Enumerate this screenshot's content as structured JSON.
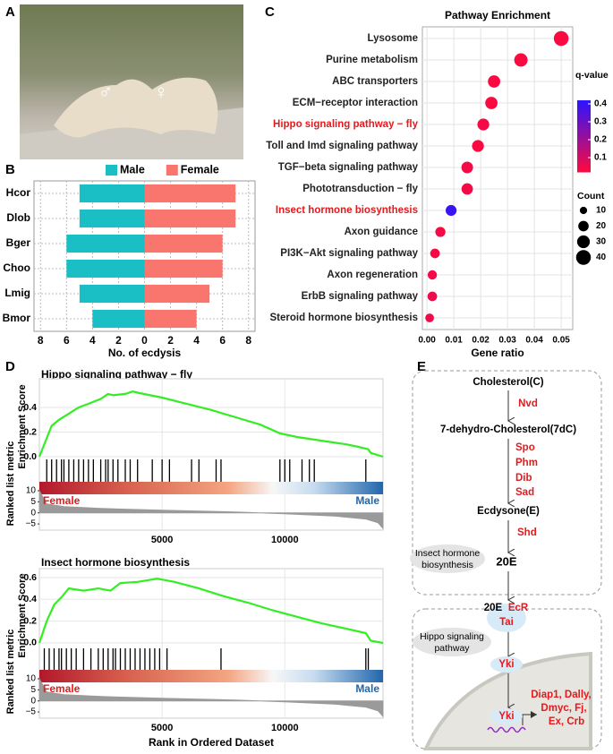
{
  "panel_labels": [
    "A",
    "B",
    "C",
    "D",
    "E"
  ],
  "photo": {
    "symbols": [
      "♂",
      "♀"
    ]
  },
  "chart_data": [
    {
      "type": "butterfly",
      "categories": [
        "Hcor",
        "Dlob",
        "Bger",
        "Choo",
        "Lmig",
        "Bmor"
      ],
      "series": [
        {
          "name": "Male",
          "color": "#19bfc4",
          "direction": "left",
          "values": [
            5,
            5,
            6,
            6,
            5,
            4
          ]
        },
        {
          "name": "Female",
          "color": "#f8766d",
          "direction": "right",
          "values": [
            7,
            7,
            6,
            6,
            5,
            4
          ]
        }
      ],
      "xlim": [
        -8.5,
        8.5
      ],
      "xticks": [
        {
          "value": -8,
          "label": "8"
        },
        {
          "value": -6,
          "label": "6"
        },
        {
          "value": -4,
          "label": "4"
        },
        {
          "value": -2,
          "label": "2"
        },
        0,
        2,
        4,
        6,
        8
      ],
      "xlabel": "No. of ecdysis",
      "grid": true
    },
    {
      "type": "dot",
      "title": "Pathway Enrichment",
      "categories": [
        "Lysosome",
        "Purine metabolism",
        "ABC transporters",
        "ECM−receptor interaction",
        "Hippo signaling pathway − fly",
        "Toll and Imd signaling pathway",
        "TGF−beta signaling pathway",
        "Phototransduction − fly",
        "Insect hormone biosynthesis",
        "Axon guidance",
        "PI3K−Akt signaling pathway",
        "Axon regeneration",
        "ErbB signaling pathway",
        "Steroid hormone biosynthesis"
      ],
      "category_colors": [
        "#222",
        "#222",
        "#222",
        "#222",
        "#e41a1c",
        "#222",
        "#222",
        "#222",
        "#e41a1c",
        "#222",
        "#222",
        "#222",
        "#222",
        "#222"
      ],
      "values": [
        0.05,
        0.035,
        0.025,
        0.024,
        0.021,
        0.019,
        0.015,
        0.015,
        0.009,
        0.005,
        0.003,
        0.002,
        0.002,
        0.001
      ],
      "counts": [
        40,
        33,
        28,
        28,
        26,
        26,
        25,
        24,
        22,
        19,
        17,
        16,
        17,
        14
      ],
      "qvalues": [
        0.03,
        0.03,
        0.03,
        0.03,
        0.04,
        0.03,
        0.04,
        0.04,
        0.4,
        0.04,
        0.04,
        0.04,
        0.05,
        0.05
      ],
      "xlim": [
        -0.0017,
        0.0543
      ],
      "xticks": [
        {
          "value": 0,
          "label": "0.00"
        },
        {
          "value": 0.01,
          "label": "0.01"
        },
        {
          "value": 0.02,
          "label": "0.02"
        },
        {
          "value": 0.03,
          "label": "0.03"
        },
        {
          "value": 0.04,
          "label": "0.04"
        },
        {
          "value": 0.05,
          "label": "0.05"
        }
      ],
      "xlabel": "Gene ratio",
      "color_legend": {
        "title": "q-value",
        "lim": [
          0.02,
          0.42
        ],
        "colors": [
          "#ff0a3c",
          "#2b14ff"
        ],
        "ticks": [
          0.1,
          0.2,
          0.3,
          0.4
        ]
      },
      "size_legend": {
        "title": "Count",
        "values": [
          10,
          20,
          30,
          40
        ]
      },
      "grid": true
    },
    {
      "type": "gsea",
      "title": "Hippo signaling pathway − fly",
      "ylabel": "Enrichment Score",
      "metric_label": "Ranked list metric",
      "x": [
        0,
        300,
        500,
        800,
        1200,
        1600,
        2000,
        2500,
        2800,
        3000,
        3500,
        3800,
        4000,
        5000,
        6000,
        7000,
        8000,
        9000,
        9800,
        10500,
        11500,
        12500,
        13000,
        13400,
        13500,
        14000
      ],
      "es": [
        0,
        0.15,
        0.25,
        0.3,
        0.35,
        0.4,
        0.43,
        0.47,
        0.51,
        0.5,
        0.51,
        0.53,
        0.52,
        0.48,
        0.43,
        0.38,
        0.32,
        0.26,
        0.19,
        0.16,
        0.13,
        0.1,
        0.08,
        0.06,
        0.03,
        0
      ],
      "line_color": "#33ee22",
      "hits": [
        300,
        500,
        700,
        900,
        1000,
        1200,
        1400,
        1600,
        1800,
        2000,
        2200,
        2500,
        2700,
        2800,
        3000,
        3200,
        3500,
        3700,
        4000,
        4600,
        5000,
        5300,
        6200,
        6500,
        7200,
        7400,
        9800,
        10000,
        10200,
        10700,
        11000,
        11200,
        13300
      ],
      "metric_x": [
        0,
        300,
        1000,
        2500,
        5000,
        8000,
        10000,
        12000,
        13300,
        13800,
        14000
      ],
      "metric": [
        10,
        4,
        2.8,
        2,
        1.2,
        0.4,
        -0.4,
        -1.4,
        -2.8,
        -4.5,
        -7
      ],
      "xlim": [
        0,
        14000
      ],
      "xticks": [
        5000,
        10000
      ],
      "ylim": [
        -0.073,
        0.633
      ],
      "yticks": [
        {
          "value": 0,
          "label": "0.0"
        },
        0.2,
        0.4
      ],
      "metric_lim": [
        -7.8,
        10
      ],
      "metric_ticks": [
        10,
        5,
        0,
        {
          "value": -5,
          "label": "−5"
        }
      ],
      "left_label": "Female",
      "right_label": "Male"
    },
    {
      "type": "gsea",
      "title": "Insect hormone biosynthesis",
      "ylabel": "Enrichment Score",
      "metric_label": "Ranked list metric",
      "x": [
        0,
        300,
        600,
        900,
        1200,
        1800,
        2400,
        2900,
        3300,
        4000,
        4800,
        5500,
        6500,
        7500,
        8500,
        9500,
        10500,
        11500,
        12500,
        13300,
        13500,
        14000
      ],
      "es": [
        0,
        0.2,
        0.35,
        0.42,
        0.5,
        0.48,
        0.5,
        0.48,
        0.55,
        0.56,
        0.59,
        0.56,
        0.5,
        0.43,
        0.37,
        0.3,
        0.24,
        0.18,
        0.13,
        0.09,
        0.02,
        0
      ],
      "line_color": "#33ee22",
      "hits": [
        200,
        400,
        600,
        800,
        900,
        1100,
        1300,
        1500,
        1800,
        2100,
        2400,
        2600,
        2800,
        3000,
        3100,
        3300,
        3500,
        3700,
        3900,
        4100,
        4300,
        4500,
        4700,
        4900,
        5200,
        7400,
        13300,
        13400
      ],
      "metric_x": [
        0,
        300,
        1000,
        2500,
        5000,
        8000,
        10000,
        12000,
        13300,
        13800,
        14000
      ],
      "metric": [
        10,
        4,
        2.8,
        2,
        1.2,
        0.4,
        -0.4,
        -1.4,
        -2.8,
        -4.5,
        -7
      ],
      "xlim": [
        0,
        14000
      ],
      "xticks": [
        5000,
        10000
      ],
      "ylim": [
        -0.099,
        0.682
      ],
      "yticks": [
        {
          "value": 0,
          "label": "0.0"
        },
        0.2,
        0.4,
        0.6
      ],
      "metric_lim": [
        -7.8,
        10
      ],
      "metric_ticks": [
        10,
        5,
        0,
        {
          "value": -5,
          "label": "−5"
        }
      ],
      "left_label": "Female",
      "right_label": "Male",
      "xlabel": "Rank in Ordered Dataset"
    }
  ],
  "diagram": {
    "cholesterol": "Cholesterol(C)",
    "nvd": "Nvd",
    "dehydro": "7-dehydro-Cholesterol(7dC)",
    "enzymes": [
      "Spo",
      "Phm",
      "Dib",
      "Sad"
    ],
    "ecdysone": "Ecdysone(E)",
    "shd": "Shd",
    "hormone": "20E",
    "insect_box": [
      "Insect hormone",
      "biosynthesis"
    ],
    "complex": [
      "20E",
      "EcR",
      "Tai"
    ],
    "hippo_box": [
      "Hippo signaling",
      "pathway"
    ],
    "yki_cyto": "Yki",
    "yki_nuc": "Yki",
    "targets": [
      "Diap1, Dally,",
      "Dmyc, Fj,",
      "Ex, Crb"
    ]
  }
}
